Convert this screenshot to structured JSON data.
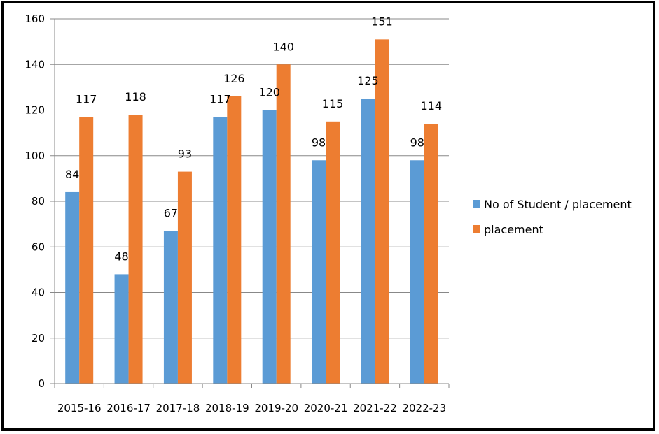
{
  "chart_data": {
    "type": "bar",
    "categories": [
      "2015-16",
      "2016-17",
      "2017-18",
      "2018-19",
      "2019-20",
      "2020-21",
      "2021-22",
      "2022-23"
    ],
    "series": [
      {
        "name": "No of Student / placement",
        "color": "#5B9BD5",
        "values": [
          84,
          48,
          67,
          117,
          120,
          98,
          125,
          98
        ]
      },
      {
        "name": "placement",
        "color": "#ED7D31",
        "values": [
          117,
          118,
          93,
          126,
          140,
          115,
          151,
          114
        ]
      }
    ],
    "ylim": [
      0,
      160
    ],
    "yticks": [
      0,
      20,
      40,
      60,
      80,
      100,
      120,
      140,
      160
    ],
    "grid": true,
    "data_labels": true,
    "legend_position": "right"
  }
}
